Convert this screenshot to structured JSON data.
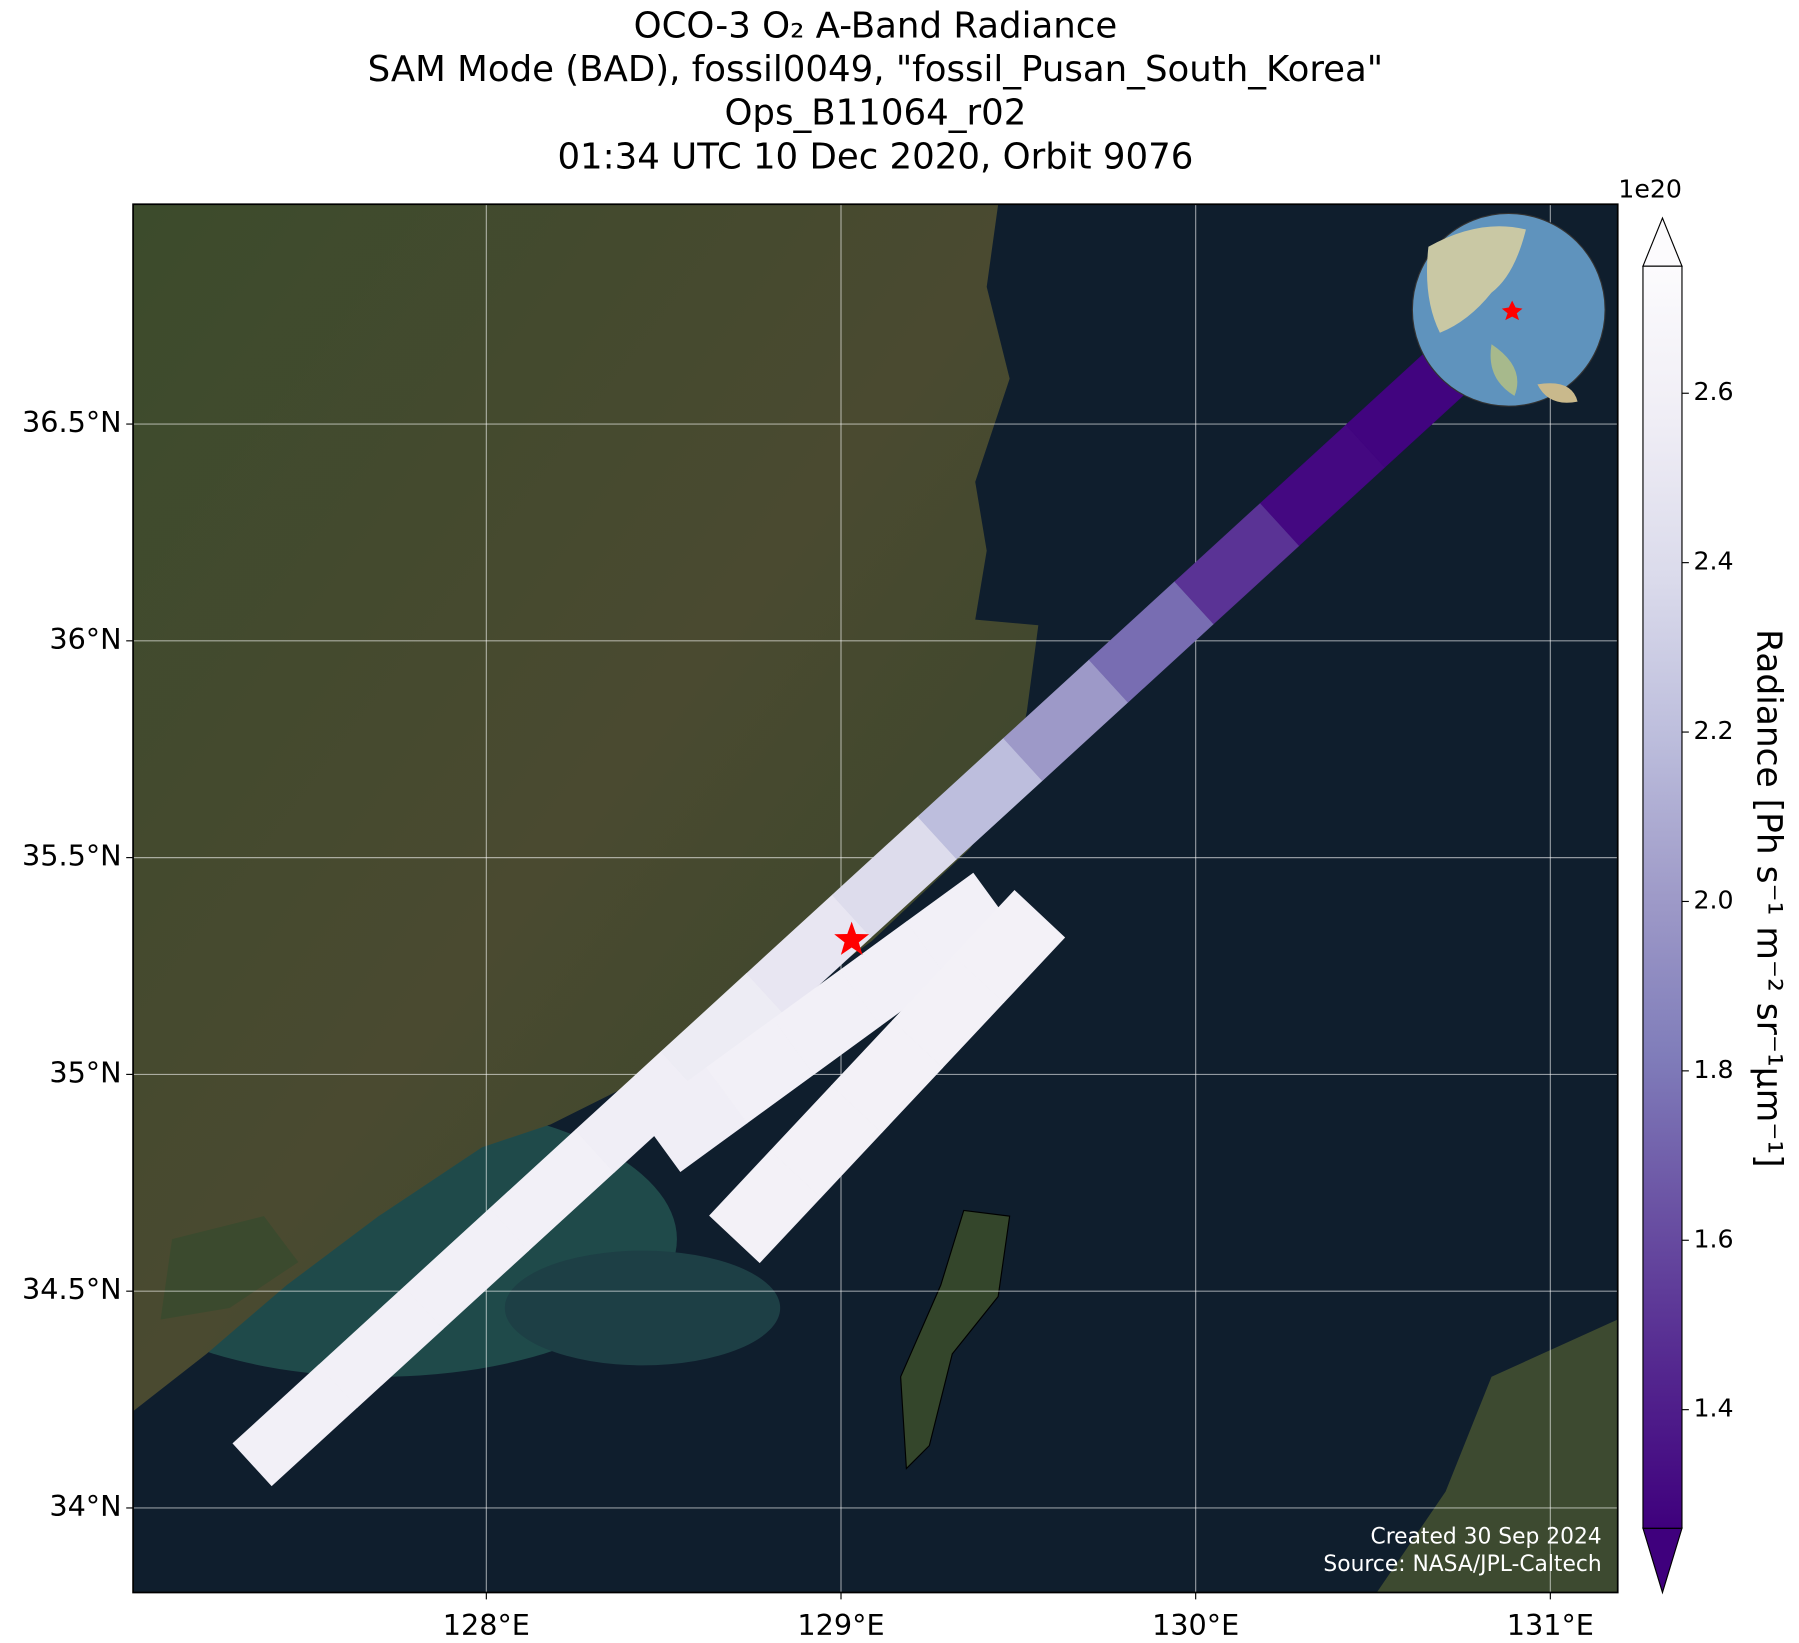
{
  "chart_data": {
    "type": "swath_map",
    "title": [
      "OCO-3 O₂ A-Band Radiance",
      "SAM Mode (BAD), fossil0049, \"fossil_Pusan_South_Korea\"",
      "Ops_B11064_r02",
      "01:34 UTC 10 Dec 2020, Orbit 9076"
    ],
    "xlim": [
      127.004,
      131.19
    ],
    "ylim": [
      33.805,
      37.007
    ],
    "xticks": [
      {
        "value": 128,
        "label": "128°E"
      },
      {
        "value": 129,
        "label": "129°E"
      },
      {
        "value": 130,
        "label": "130°E"
      },
      {
        "value": 131,
        "label": "131°E"
      }
    ],
    "yticks": [
      {
        "value": 34,
        "label": "34°N"
      },
      {
        "value": 34.5,
        "label": "34.5°N"
      },
      {
        "value": 35,
        "label": "35°N"
      },
      {
        "value": 35.5,
        "label": "35.5°N"
      },
      {
        "value": 36,
        "label": "36°N"
      },
      {
        "value": 36.5,
        "label": "36.5°N"
      }
    ],
    "grid": true,
    "colormap": "Purples",
    "clim": [
      1.26,
      2.75
    ],
    "colorbar_label": "Radiance [Ph s⁻¹ m⁻² sr⁻¹μm⁻¹]",
    "colorbar_offset_label": "1e20",
    "colorbar_ticks": [
      1.4,
      1.6,
      1.8,
      {
        "value": 2.0,
        "label": "2.0"
      },
      2.2,
      2.4,
      2.6
    ],
    "swaths": [
      {
        "start": [
          127.34,
          34.1
        ],
        "end": [
          130.72,
          36.63
        ],
        "values": [
          2.6,
          2.6,
          2.6,
          2.6,
          2.58,
          2.55,
          2.5,
          2.4,
          2.2,
          2.0,
          1.75,
          1.5,
          1.3,
          1.28
        ]
      },
      {
        "start": [
          128.49,
          34.84
        ],
        "end": [
          129.43,
          35.4
        ],
        "values": [
          2.58,
          2.6,
          2.6,
          2.6,
          2.6
        ]
      },
      {
        "start": [
          128.7,
          34.62
        ],
        "end": [
          129.56,
          35.37
        ],
        "values": [
          2.62,
          2.62,
          2.62,
          2.62,
          2.62
        ]
      }
    ],
    "star": {
      "lon": 129.03,
      "lat": 35.31,
      "color": "#ff0000"
    },
    "annotations": [
      "Created 30 Sep 2024",
      "Source: NASA/JPL-Caltech"
    ]
  }
}
